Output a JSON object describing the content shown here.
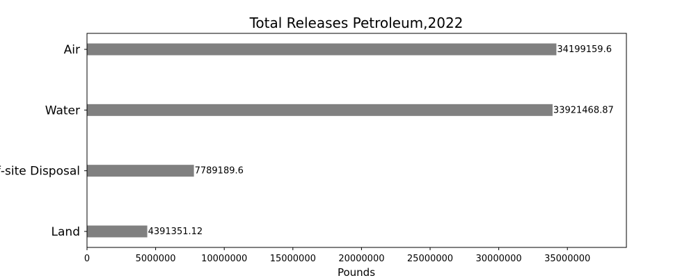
{
  "chart_data": {
    "type": "bar",
    "orientation": "horizontal",
    "title": "Total Releases Petroleum,2022",
    "xlabel": "Pounds",
    "ylabel": "",
    "categories": [
      "Air",
      "Water",
      "Off-site Disposal",
      "Land"
    ],
    "values": [
      34199159.6,
      33921468.87,
      7789189.6,
      4391351.12
    ],
    "value_labels": [
      "34199159.6",
      "33921468.87",
      "7789189.6",
      "4391351.12"
    ],
    "xlim": [
      0,
      39300000
    ],
    "xticks": [
      0,
      5000000,
      10000000,
      15000000,
      20000000,
      25000000,
      30000000,
      35000000
    ],
    "xtick_labels": [
      "0",
      "5000000",
      "10000000",
      "15000000",
      "20000000",
      "25000000",
      "30000000",
      "35000000"
    ],
    "bar_color": "#808080",
    "grid": false,
    "legend": "none"
  }
}
